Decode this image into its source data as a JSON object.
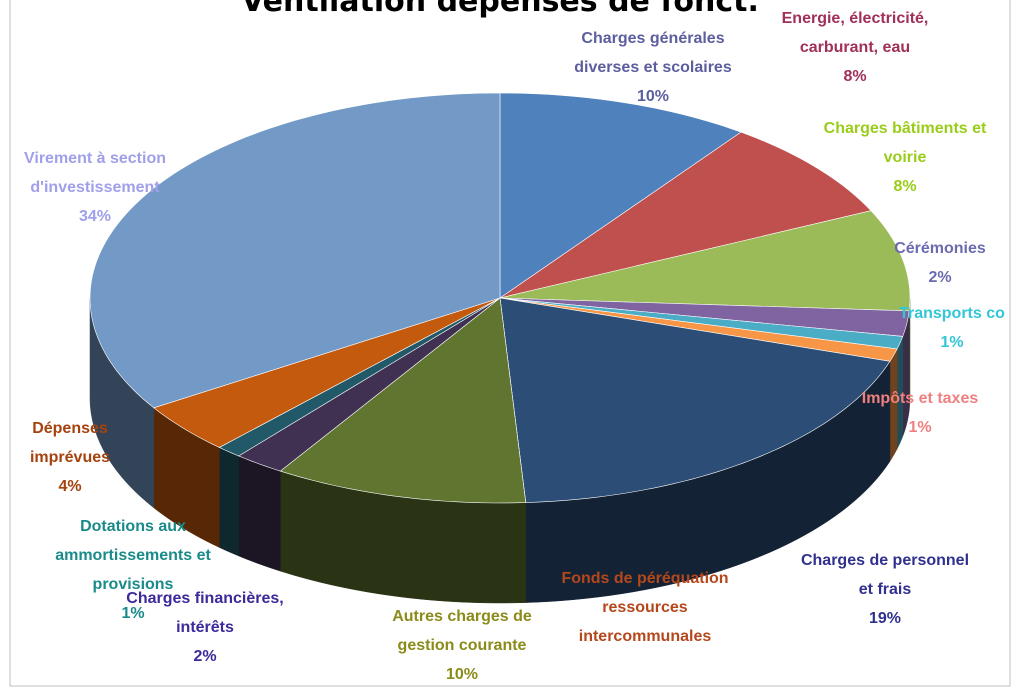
{
  "chart_data": {
    "type": "pie3d",
    "title": "Ventilation dépenses de fonct.",
    "categories": [
      "Charges générales diverses et scolaires",
      "Energie, électricité, carburant, eau",
      "Charges bâtiments et voirie",
      "Cérémonies",
      "Transports co",
      "Impôts et taxes",
      "Charges de personnel et frais",
      "Fonds de péréquation ressources intercommunales",
      "Autres charges de gestion courante",
      "Charges financières, intérêts",
      "Dotations aux ammortissements et provisions",
      "Dépenses imprévues",
      "Virement à section d'investissement"
    ],
    "values": [
      10,
      8,
      8,
      2,
      1,
      1,
      19,
      0,
      10,
      2,
      1,
      4,
      34
    ],
    "value_labels": [
      "10%",
      "8%",
      "8%",
      "2%",
      "1%",
      "1%",
      "19%",
      null,
      "10%",
      "2%",
      "1%",
      "4%",
      "34%"
    ],
    "colors": [
      "#4f81bd",
      "#c0504d",
      "#9bbb59",
      "#8064a2",
      "#4bacc6",
      "#f79646",
      "#2c4d75",
      "#772c2a",
      "#5f7530",
      "#403152",
      "#215968",
      "#c45a0e",
      "#7399c6"
    ],
    "label_colors": [
      "#5c5e9e",
      "#a0305a",
      "#9acd1a",
      "#6b6bb0",
      "#33c6d6",
      "#f08080",
      "#30308f",
      "#b5471c",
      "#8b8b1a",
      "#3a2a9a",
      "#1a8a8a",
      "#a5420e",
      "#9f9fea"
    ]
  }
}
